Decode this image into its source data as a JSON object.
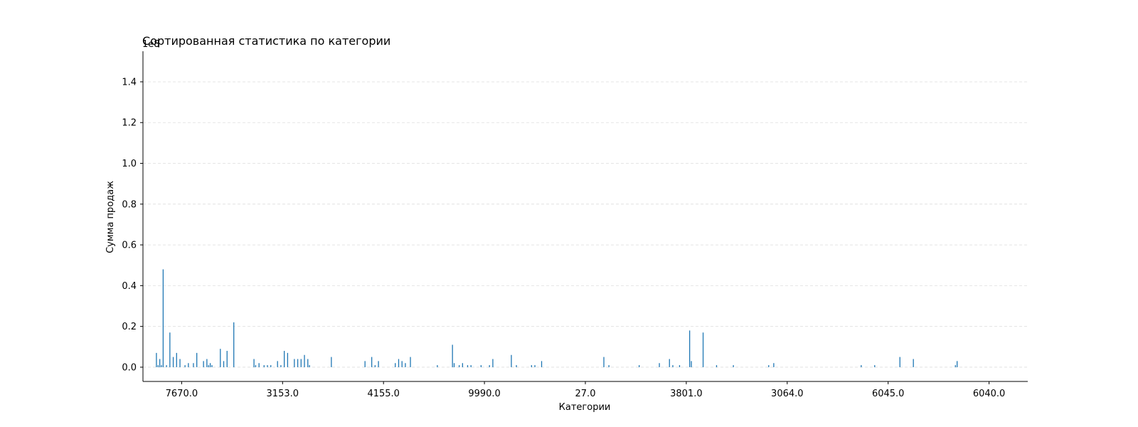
{
  "chart_data": {
    "type": "bar",
    "title": "Сортированная статистика по категории",
    "xlabel": "Категории",
    "ylabel": "Сумма продаж",
    "y_offset_label": "1e8",
    "ylim": [
      -0.07,
      1.55
    ],
    "y_ticks": [
      0.0,
      0.2,
      0.4,
      0.6,
      0.8,
      1.0,
      1.2,
      1.4
    ],
    "y_tick_labels": [
      "0.0",
      "0.2",
      "0.4",
      "0.6",
      "0.8",
      "1.0",
      "1.2",
      "1.4"
    ],
    "x_tick_labels": [
      "7670.0",
      "3153.0",
      "4155.0",
      "9990.0",
      "27.0",
      "3801.0",
      "3064.0",
      "6045.0",
      "6040.0"
    ],
    "x_tick_positions": [
      15,
      75,
      135,
      195,
      255,
      315,
      375,
      435,
      495
    ],
    "xlim": [
      -8,
      518
    ],
    "grid": {
      "y": true,
      "x": false,
      "style": "dashed"
    },
    "bar_color": "#1f77b4",
    "values": [
      0.07,
      0.01,
      0.04,
      0.01,
      0.48,
      0.0,
      0.01,
      0.0,
      0.17,
      0.0,
      0.05,
      0.0,
      0.07,
      0.0,
      0.04,
      0.0,
      0.0,
      0.01,
      0.0,
      0.02,
      0.0,
      0.0,
      0.02,
      0.0,
      0.07,
      0.0,
      0.0,
      0.0,
      0.03,
      0.0,
      0.04,
      0.01,
      0.02,
      0.01,
      0.0,
      0.0,
      0.0,
      0.0,
      0.09,
      0.0,
      0.03,
      0.0,
      0.08,
      0.0,
      0.0,
      0.0,
      0.22,
      0.0,
      0.0,
      0.0,
      0.0,
      0.0,
      0.0,
      0.0,
      0.0,
      0.0,
      0.0,
      0.0,
      0.04,
      0.01,
      0.0,
      0.02,
      0.0,
      0.0,
      0.01,
      0.0,
      0.01,
      0.0,
      0.01,
      0.0,
      0.0,
      0.0,
      0.03,
      0.0,
      0.01,
      0.0,
      0.08,
      0.0,
      0.07,
      0.0,
      0.0,
      0.0,
      0.04,
      0.0,
      0.04,
      0.0,
      0.04,
      0.0,
      0.06,
      0.0,
      0.04,
      0.01,
      0.0,
      0.0,
      0.0,
      0.0,
      0.0,
      0.0,
      0.0,
      0.0,
      0.0,
      0.0,
      0.0,
      0.0,
      0.05,
      0.0,
      0.0,
      0.0,
      0.0,
      0.0,
      0.0,
      0.0,
      0.0,
      0.0,
      0.0,
      0.0,
      0.0,
      0.0,
      0.0,
      0.0,
      0.0,
      0.0,
      0.0,
      0.0,
      0.03,
      0.0,
      0.0,
      0.0,
      0.05,
      0.0,
      0.01,
      0.0,
      0.03,
      0.0,
      0.0,
      0.0,
      0.0,
      0.0,
      0.0,
      0.0,
      0.0,
      0.0,
      0.02,
      0.0,
      0.04,
      0.0,
      0.03,
      0.0,
      0.02,
      0.0,
      0.0,
      0.05,
      0.0,
      0.0,
      0.0,
      0.0,
      0.0,
      0.0,
      0.0,
      0.0,
      0.0,
      0.0,
      0.0,
      0.0,
      0.0,
      0.0,
      0.0,
      0.01,
      0.0,
      0.0,
      0.0,
      0.0,
      0.0,
      0.0,
      0.0,
      0.0,
      0.11,
      0.02,
      0.0,
      0.0,
      0.01,
      0.0,
      0.02,
      0.0,
      0.0,
      0.01,
      0.0,
      0.01,
      0.0,
      0.0,
      0.0,
      0.0,
      0.0,
      0.01,
      0.0,
      0.0,
      0.0,
      0.0,
      0.01,
      0.0,
      0.04,
      0.0,
      0.0,
      0.0,
      0.0,
      0.0,
      0.0,
      0.0,
      0.0,
      0.0,
      0.0,
      0.06,
      0.0,
      0.0,
      0.01,
      0.0,
      0.0,
      0.0,
      0.0,
      0.0,
      0.0,
      0.0,
      0.0,
      0.01,
      0.0,
      0.01,
      0.0,
      0.0,
      0.0,
      0.03,
      0.0,
      0.0,
      0.0,
      0.0,
      0.0,
      0.0,
      0.0,
      0.0,
      0.0,
      0.0,
      0.0,
      0.0,
      0.0,
      0.0,
      0.0,
      0.0,
      0.0,
      0.0,
      0.0,
      0.0,
      0.0,
      0.0,
      0.0,
      0.0,
      0.0,
      0.0,
      0.0,
      0.0,
      0.0,
      0.0,
      0.0,
      0.0,
      0.0,
      0.0,
      0.0,
      0.0,
      0.05,
      0.0,
      0.0,
      0.01,
      0.0,
      0.0,
      0.0,
      0.0,
      0.0,
      0.0,
      0.0,
      0.0,
      0.0,
      0.0,
      0.0,
      0.0,
      0.0,
      0.0,
      0.0,
      0.0,
      0.0,
      0.01,
      0.0,
      0.0,
      0.0,
      0.0,
      0.0,
      0.0,
      0.0,
      0.0,
      0.0,
      0.0,
      0.0,
      0.02,
      0.0,
      0.0,
      0.0,
      0.0,
      0.0,
      0.04,
      0.0,
      0.01,
      0.0,
      0.0,
      0.0,
      0.01,
      0.0,
      0.0,
      0.0,
      0.0,
      0.0,
      0.18,
      0.03,
      0.0,
      0.0,
      0.0,
      0.0,
      0.0,
      0.0,
      0.17,
      0.0,
      0.0,
      0.0,
      0.0,
      0.0,
      0.0,
      0.0,
      0.01,
      0.0,
      0.0,
      0.0,
      0.0,
      0.0,
      0.0,
      0.0,
      0.0,
      0.0,
      0.01,
      0.0,
      0.0,
      0.0,
      0.0,
      0.0,
      0.0,
      0.0,
      0.0,
      0.0,
      0.0,
      0.0,
      0.0,
      0.0,
      0.0,
      0.0,
      0.0,
      0.0,
      0.0,
      0.0,
      0.0,
      0.01,
      0.0,
      0.0,
      0.02,
      0.0,
      0.0,
      0.0,
      0.0,
      0.0,
      0.0,
      0.0,
      0.0,
      0.0,
      0.0,
      0.0,
      0.0,
      0.0,
      0.0,
      0.0,
      0.0,
      0.0,
      0.0,
      0.0,
      0.0,
      0.0,
      0.0,
      0.0,
      0.0,
      0.0,
      0.0,
      0.0,
      0.0,
      0.0,
      0.0,
      0.0,
      0.0,
      0.0,
      0.0,
      0.0,
      0.0,
      0.0,
      0.0,
      0.0,
      0.0,
      0.0,
      0.0,
      0.0,
      0.0,
      0.0,
      0.0,
      0.0,
      0.0,
      0.0,
      0.0,
      0.0,
      0.01,
      0.0,
      0.0,
      0.0,
      0.0,
      0.0,
      0.0,
      0.0,
      0.01,
      0.0,
      0.0,
      0.0,
      0.0,
      0.0,
      0.0,
      0.0,
      0.0,
      0.0,
      0.0,
      0.0,
      0.0,
      0.0,
      0.0,
      0.05,
      0.0,
      0.0,
      0.0,
      0.0,
      0.0,
      0.0,
      0.0,
      0.04,
      0.0,
      0.0,
      0.0,
      0.0,
      0.0,
      0.0,
      0.0,
      0.0,
      0.0,
      0.0,
      0.0,
      0.0,
      0.0,
      0.0,
      0.0,
      0.0,
      0.0,
      0.0,
      0.0,
      0.0,
      0.0,
      0.0,
      0.0,
      0.0,
      0.01,
      0.03,
      0.0,
      0.0,
      0.0,
      0.0,
      0.0,
      0.0,
      0.0,
      0.0,
      0.0,
      0.0,
      0.0,
      0.0,
      0.0,
      0.0,
      0.0,
      0.0,
      0.0,
      0.0,
      0.0,
      0.0,
      0.0,
      0.0,
      0.0,
      0.0,
      0.0,
      0.0,
      0.0,
      0.0,
      0.0,
      0.0,
      0.0,
      0.0,
      0.0,
      0.0,
      0.0,
      0.0,
      0.0,
      0.0,
      0.0,
      0.0,
      0.0,
      0.0,
      0.0,
      0.0,
      0.0,
      0.0,
      0.0,
      0.0,
      0.0,
      0.0,
      0.0,
      0.0,
      0.0,
      0.0,
      0.0,
      0.0,
      0.0,
      0.0,
      0.0,
      0.0,
      0.0,
      0.0,
      0.0,
      0.0,
      0.0,
      0.0,
      0.0,
      0.0,
      0.0,
      0.0,
      0.0,
      0.0,
      0.0
    ]
  }
}
